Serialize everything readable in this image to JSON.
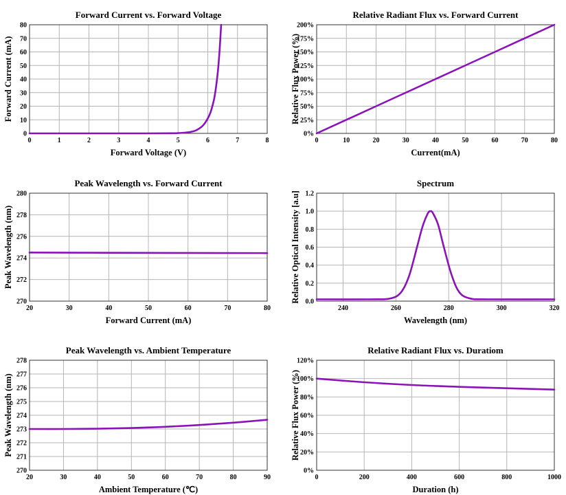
{
  "colors": {
    "curve": "#8b12b8",
    "grid": "#b4b4b4",
    "frame": "#333333"
  },
  "chart_data": [
    {
      "type": "line",
      "title": "Forward Current vs. Forward Voltage",
      "xlabel": "Forward Voltage (V)",
      "ylabel": "Forward Current (mA)",
      "xlim": [
        0,
        8
      ],
      "ylim": [
        0,
        80
      ],
      "xticks": [
        0,
        1,
        2,
        3,
        4,
        5,
        6,
        7,
        8
      ],
      "yticks": [
        0,
        10,
        20,
        30,
        40,
        50,
        60,
        70,
        80
      ],
      "xtick_labels": [
        "0",
        "1",
        "2",
        "3",
        "4",
        "5",
        "6",
        "7",
        "8"
      ],
      "ytick_labels": [
        "0",
        "10",
        "20",
        "30",
        "40",
        "50",
        "60",
        "70",
        "80"
      ],
      "grid": true,
      "x": [
        0,
        2,
        4,
        4.8,
        5.0,
        5.2,
        5.4,
        5.6,
        5.8,
        5.9,
        6.0,
        6.1,
        6.2,
        6.25,
        6.3,
        6.35,
        6.4,
        6.45
      ],
      "y": [
        0,
        0,
        0,
        0.1,
        0.2,
        0.5,
        1.0,
        2.2,
        5.0,
        7.5,
        11.0,
        16.0,
        24.0,
        30.0,
        38.0,
        48.0,
        62.0,
        80.0
      ]
    },
    {
      "type": "line",
      "title": "Relative Radiant Flux vs. Forward Current",
      "xlabel": "Current(mA)",
      "ylabel": "Relative Flux Power (%)",
      "xlim": [
        0,
        80
      ],
      "ylim": [
        0,
        200
      ],
      "xticks": [
        0,
        10,
        20,
        30,
        40,
        50,
        60,
        70,
        80
      ],
      "yticks": [
        0,
        25,
        50,
        75,
        100,
        125,
        150,
        175,
        200
      ],
      "xtick_labels": [
        "0",
        "10",
        "20",
        "30",
        "40",
        "50",
        "60",
        "70",
        "80"
      ],
      "ytick_labels": [
        "0%",
        "25%",
        "50%",
        "75%",
        "100%",
        "125%",
        "150%",
        "175%",
        "200%"
      ],
      "grid": true,
      "x": [
        0,
        20,
        40,
        60,
        80
      ],
      "y": [
        0,
        50,
        100,
        150,
        200
      ]
    },
    {
      "type": "line",
      "title": "Peak Wavelength vs. Forward Current",
      "xlabel": "Forward Current (mA)",
      "ylabel": "Peak Wavelength (nm)",
      "xlim": [
        20,
        80
      ],
      "ylim": [
        270,
        280
      ],
      "xticks": [
        20,
        30,
        40,
        50,
        60,
        70,
        80
      ],
      "yticks": [
        270,
        272,
        274,
        276,
        278,
        280
      ],
      "xtick_labels": [
        "20",
        "30",
        "40",
        "50",
        "60",
        "70",
        "80"
      ],
      "ytick_labels": [
        "270",
        "272",
        "274",
        "276",
        "278",
        "280"
      ],
      "grid": true,
      "x": [
        20,
        40,
        60,
        80
      ],
      "y": [
        274.5,
        274.48,
        274.46,
        274.45
      ]
    },
    {
      "type": "line",
      "title": "Spectrum",
      "xlabel": "Wavelength (nm)",
      "ylabel": "Relative Optical Intensity [a.u]",
      "xlim": [
        230,
        320
      ],
      "ylim": [
        0,
        1.2
      ],
      "xticks": [
        240,
        260,
        280,
        300,
        320
      ],
      "yticks": [
        0,
        0.2,
        0.4,
        0.6,
        0.8,
        1.0,
        1.2
      ],
      "xtick_labels": [
        "240",
        "260",
        "280",
        "300",
        "320"
      ],
      "ytick_labels": [
        "0.0",
        "0.2",
        "0.4",
        "0.6",
        "0.8",
        "1.0",
        "1.2"
      ],
      "grid": true,
      "x": [
        230,
        250,
        258,
        262,
        265,
        268,
        270,
        272,
        273,
        274,
        276,
        278,
        281,
        284,
        288,
        295,
        320
      ],
      "y": [
        0.02,
        0.02,
        0.03,
        0.1,
        0.28,
        0.6,
        0.82,
        0.97,
        1.0,
        0.98,
        0.85,
        0.62,
        0.3,
        0.1,
        0.03,
        0.02,
        0.02
      ]
    },
    {
      "type": "line",
      "title": "Peak Wavelength vs. Ambient Temperature",
      "xlabel": "Ambient Temperature (℃)",
      "ylabel": "Peak Wavelength (nm)",
      "xlim": [
        20,
        90
      ],
      "ylim": [
        270,
        278
      ],
      "xticks": [
        20,
        30,
        40,
        50,
        60,
        70,
        80,
        90
      ],
      "yticks": [
        270,
        271,
        272,
        273,
        274,
        275,
        276,
        277,
        278
      ],
      "xtick_labels": [
        "20",
        "30",
        "40",
        "50",
        "60",
        "70",
        "80",
        "90"
      ],
      "ytick_labels": [
        "270",
        "271",
        "272",
        "273",
        "274",
        "275",
        "276",
        "277",
        "278"
      ],
      "grid": true,
      "x": [
        20,
        30,
        40,
        50,
        60,
        70,
        80,
        90
      ],
      "y": [
        273.0,
        273.0,
        273.02,
        273.07,
        273.16,
        273.29,
        273.46,
        273.67
      ]
    },
    {
      "type": "line",
      "title": "Relative Radiant Flux vs. Duratiom",
      "xlabel": "Duration (h)",
      "ylabel": "Relative Flux Power (%)",
      "xlim": [
        0,
        1000
      ],
      "ylim": [
        0,
        120
      ],
      "xticks": [
        0,
        200,
        400,
        600,
        800,
        1000
      ],
      "yticks": [
        0,
        20,
        40,
        60,
        80,
        100,
        120
      ],
      "xtick_labels": [
        "0",
        "200",
        "400",
        "600",
        "800",
        "1000"
      ],
      "ytick_labels": [
        "0%",
        "20%",
        "40%",
        "60%",
        "80%",
        "100%",
        "120%"
      ],
      "grid": true,
      "x": [
        0,
        200,
        400,
        600,
        800,
        1000
      ],
      "y": [
        100,
        96,
        93,
        91,
        89.5,
        88
      ]
    }
  ]
}
